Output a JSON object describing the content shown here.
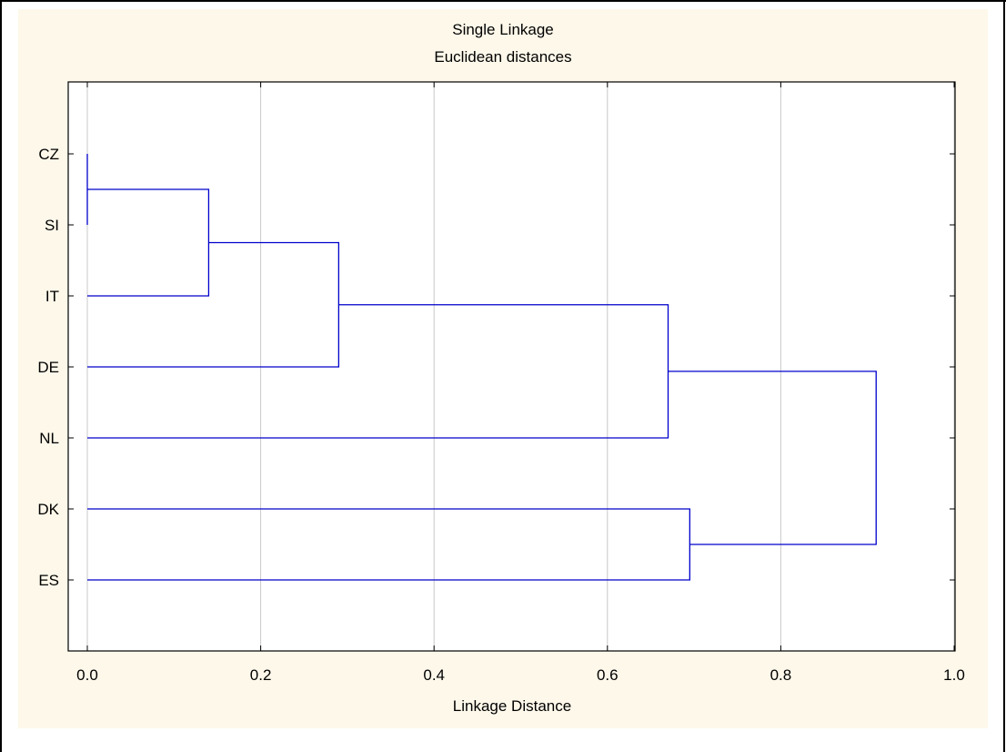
{
  "chart_data": {
    "type": "dendrogram",
    "title": "Single Linkage",
    "subtitle": "Euclidean distances",
    "xlabel": "Linkage Distance",
    "ylabel": "",
    "xlim": [
      0.0,
      1.0
    ],
    "x_ticks": [
      0.0,
      0.2,
      0.4,
      0.6,
      0.8,
      1.0
    ],
    "x_tick_labels": [
      "0.0",
      "0.2",
      "0.4",
      "0.6",
      "0.8",
      "1.0"
    ],
    "grid": "vertical",
    "leaves": [
      "CZ",
      "SI",
      "IT",
      "DE",
      "NL",
      "DK",
      "ES"
    ],
    "merges": [
      {
        "left": "CZ",
        "right": "SI",
        "distance": 0.0
      },
      {
        "left": "CZ+SI",
        "right": "IT",
        "distance": 0.14
      },
      {
        "left": "CZ+SI+IT",
        "right": "DE",
        "distance": 0.29
      },
      {
        "left": "CZ+SI+IT+DE",
        "right": "NL",
        "distance": 0.67
      },
      {
        "left": "DK",
        "right": "ES",
        "distance": 0.695
      },
      {
        "left": "CZ+SI+IT+DE+NL",
        "right": "DK+ES",
        "distance": 0.91
      }
    ]
  },
  "colors": {
    "panel_background": "#fdf8ea",
    "plot_background": "#ffffff",
    "line": "#0000cc",
    "grid": "#c8c8c8",
    "frame": "#000000"
  }
}
